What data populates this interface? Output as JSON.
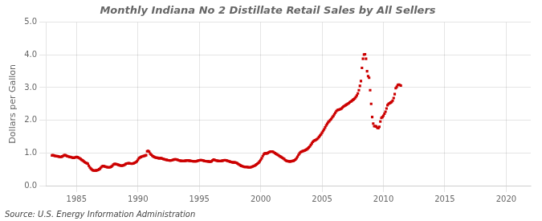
{
  "chart_data": {
    "type": "scatter",
    "title": "Monthly Indiana No 2 Distillate Retail Sales by All Sellers",
    "ylabel": "Dollars per Gallon",
    "annotations": [
      "Source: U.S. Energy Information Administration"
    ],
    "xlim": [
      1982.5,
      2022
    ],
    "ylim": [
      0.0,
      5.0
    ],
    "xticks": [
      1985,
      1990,
      1995,
      2000,
      2005,
      2010,
      2015,
      2020
    ],
    "yticks": [
      {
        "value": 0.0,
        "label": "0.0"
      },
      {
        "value": 1.0,
        "label": "1.0"
      },
      {
        "value": 2.0,
        "label": "2.0"
      },
      {
        "value": 3.0,
        "label": "3.0"
      },
      {
        "value": 4.0,
        "label": "4.0"
      },
      {
        "value": 5.0,
        "label": "5.0"
      }
    ],
    "grid": true,
    "marker": "square",
    "color": "#cc0000",
    "x": [
      1983.0,
      1983.083,
      1983.167,
      1983.25,
      1983.333,
      1983.417,
      1983.5,
      1983.583,
      1983.667,
      1983.75,
      1983.833,
      1983.917,
      1984.0,
      1984.083,
      1984.167,
      1984.25,
      1984.333,
      1984.417,
      1984.5,
      1984.583,
      1984.667,
      1984.75,
      1984.833,
      1984.917,
      1985.0,
      1985.083,
      1985.167,
      1985.25,
      1985.333,
      1985.417,
      1985.5,
      1985.583,
      1985.667,
      1985.75,
      1985.833,
      1985.917,
      1986.0,
      1986.083,
      1986.167,
      1986.25,
      1986.333,
      1986.417,
      1986.5,
      1986.583,
      1986.667,
      1986.75,
      1986.833,
      1986.917,
      1987.0,
      1987.083,
      1987.167,
      1987.25,
      1987.333,
      1987.417,
      1987.5,
      1987.583,
      1987.667,
      1987.75,
      1987.833,
      1987.917,
      1988.0,
      1988.083,
      1988.167,
      1988.25,
      1988.333,
      1988.417,
      1988.5,
      1988.583,
      1988.667,
      1988.75,
      1988.833,
      1988.917,
      1989.0,
      1989.083,
      1989.167,
      1989.25,
      1989.333,
      1989.417,
      1989.5,
      1989.583,
      1989.667,
      1989.75,
      1989.833,
      1989.917,
      1990.0,
      1990.083,
      1990.167,
      1990.25,
      1990.333,
      1990.417,
      1990.5,
      1990.583,
      1990.667,
      1990.75,
      1990.833,
      1990.917,
      1991.0,
      1991.083,
      1991.167,
      1991.25,
      1991.333,
      1991.417,
      1991.5,
      1991.583,
      1991.667,
      1991.75,
      1991.833,
      1991.917,
      1992.0,
      1992.083,
      1992.167,
      1992.25,
      1992.333,
      1992.417,
      1992.5,
      1992.583,
      1992.667,
      1992.75,
      1992.833,
      1992.917,
      1993.0,
      1993.083,
      1993.167,
      1993.25,
      1993.333,
      1993.417,
      1993.5,
      1993.583,
      1993.667,
      1993.75,
      1993.833,
      1993.917,
      1994.0,
      1994.083,
      1994.167,
      1994.25,
      1994.333,
      1994.417,
      1994.5,
      1994.583,
      1994.667,
      1994.75,
      1994.833,
      1994.917,
      1995.0,
      1995.083,
      1995.167,
      1995.25,
      1995.333,
      1995.417,
      1995.5,
      1995.583,
      1995.667,
      1995.75,
      1995.833,
      1995.917,
      1996.0,
      1996.083,
      1996.167,
      1996.25,
      1996.333,
      1996.417,
      1996.5,
      1996.583,
      1996.667,
      1996.75,
      1996.833,
      1996.917,
      1997.0,
      1997.083,
      1997.167,
      1997.25,
      1997.333,
      1997.417,
      1997.5,
      1997.583,
      1997.667,
      1997.75,
      1997.833,
      1997.917,
      1998.0,
      1998.083,
      1998.167,
      1998.25,
      1998.333,
      1998.417,
      1998.5,
      1998.583,
      1998.667,
      1998.75,
      1998.833,
      1998.917,
      1999.0,
      1999.083,
      1999.167,
      1999.25,
      1999.333,
      1999.417,
      1999.5,
      1999.583,
      1999.667,
      1999.75,
      1999.833,
      1999.917,
      2000.0,
      2000.083,
      2000.167,
      2000.25,
      2000.333,
      2000.417,
      2000.5,
      2000.583,
      2000.667,
      2000.75,
      2000.833,
      2000.917,
      2001.0,
      2001.083,
      2001.167,
      2001.25,
      2001.333,
      2001.417,
      2001.5,
      2001.583,
      2001.667,
      2001.75,
      2001.833,
      2001.917,
      2002.0,
      2002.083,
      2002.167,
      2002.25,
      2002.333,
      2002.417,
      2002.5,
      2002.583,
      2002.667,
      2002.75,
      2002.833,
      2002.917,
      2003.0,
      2003.083,
      2003.167,
      2003.25,
      2003.333,
      2003.417,
      2003.5,
      2003.583,
      2003.667,
      2003.75,
      2003.833,
      2003.917,
      2004.0,
      2004.083,
      2004.167,
      2004.25,
      2004.333,
      2004.417,
      2004.5,
      2004.583,
      2004.667,
      2004.75,
      2004.833,
      2004.917,
      2005.0,
      2005.083,
      2005.167,
      2005.25,
      2005.333,
      2005.417,
      2005.5,
      2005.583,
      2005.667,
      2005.75,
      2005.833,
      2005.917,
      2006.0,
      2006.083,
      2006.167,
      2006.25,
      2006.333,
      2006.417,
      2006.5,
      2006.583,
      2006.667,
      2006.75,
      2006.833,
      2006.917,
      2007.0,
      2007.083,
      2007.167,
      2007.25,
      2007.333,
      2007.417,
      2007.5,
      2007.583,
      2007.667,
      2007.75,
      2007.833,
      2007.917,
      2008.0,
      2008.083,
      2008.167,
      2008.25,
      2008.333,
      2008.417,
      2008.5,
      2008.583,
      2008.667,
      2008.75,
      2008.833,
      2008.917,
      2009.0,
      2009.083,
      2009.167,
      2009.25,
      2009.333,
      2009.417,
      2009.5,
      2009.583,
      2009.667,
      2009.75,
      2009.833,
      2009.917,
      2010.0,
      2010.083,
      2010.167,
      2010.25,
      2010.333,
      2010.417,
      2010.5,
      2010.583,
      2010.667,
      2010.75,
      2010.833,
      2010.917,
      2011.0,
      2011.083,
      2011.167,
      2011.25,
      2011.333,
      2011.417
    ],
    "values": [
      0.925,
      0.935,
      0.92,
      0.91,
      0.905,
      0.9,
      0.895,
      0.885,
      0.88,
      0.88,
      0.895,
      0.91,
      0.93,
      0.93,
      0.915,
      0.9,
      0.89,
      0.88,
      0.875,
      0.865,
      0.855,
      0.85,
      0.855,
      0.865,
      0.875,
      0.87,
      0.855,
      0.835,
      0.815,
      0.79,
      0.77,
      0.745,
      0.72,
      0.7,
      0.685,
      0.67,
      0.61,
      0.56,
      0.52,
      0.49,
      0.47,
      0.46,
      0.46,
      0.465,
      0.47,
      0.48,
      0.5,
      0.52,
      0.56,
      0.59,
      0.6,
      0.595,
      0.58,
      0.57,
      0.565,
      0.56,
      0.56,
      0.565,
      0.58,
      0.61,
      0.645,
      0.66,
      0.665,
      0.655,
      0.645,
      0.635,
      0.625,
      0.615,
      0.61,
      0.615,
      0.625,
      0.64,
      0.66,
      0.675,
      0.68,
      0.685,
      0.68,
      0.675,
      0.67,
      0.675,
      0.685,
      0.7,
      0.72,
      0.745,
      0.79,
      0.84,
      0.86,
      0.875,
      0.89,
      0.9,
      0.91,
      0.92,
      0.93,
      1.05,
      1.06,
      1.04,
      0.98,
      0.945,
      0.915,
      0.895,
      0.875,
      0.86,
      0.855,
      0.85,
      0.84,
      0.84,
      0.84,
      0.84,
      0.825,
      0.815,
      0.805,
      0.795,
      0.79,
      0.78,
      0.775,
      0.77,
      0.77,
      0.775,
      0.785,
      0.795,
      0.805,
      0.805,
      0.795,
      0.785,
      0.775,
      0.765,
      0.76,
      0.755,
      0.755,
      0.755,
      0.76,
      0.765,
      0.77,
      0.77,
      0.765,
      0.76,
      0.755,
      0.75,
      0.745,
      0.745,
      0.745,
      0.745,
      0.755,
      0.765,
      0.775,
      0.78,
      0.78,
      0.775,
      0.765,
      0.755,
      0.75,
      0.745,
      0.745,
      0.74,
      0.735,
      0.73,
      0.745,
      0.775,
      0.795,
      0.785,
      0.775,
      0.765,
      0.758,
      0.752,
      0.75,
      0.752,
      0.758,
      0.765,
      0.775,
      0.78,
      0.775,
      0.765,
      0.755,
      0.745,
      0.735,
      0.725,
      0.715,
      0.71,
      0.71,
      0.71,
      0.7,
      0.685,
      0.665,
      0.645,
      0.625,
      0.605,
      0.595,
      0.585,
      0.575,
      0.57,
      0.57,
      0.568,
      0.56,
      0.558,
      0.56,
      0.57,
      0.585,
      0.595,
      0.61,
      0.63,
      0.65,
      0.675,
      0.705,
      0.74,
      0.785,
      0.84,
      0.905,
      0.96,
      0.985,
      0.985,
      0.985,
      1.0,
      1.02,
      1.035,
      1.045,
      1.045,
      1.035,
      1.015,
      0.995,
      0.975,
      0.955,
      0.935,
      0.915,
      0.895,
      0.875,
      0.855,
      0.835,
      0.815,
      0.78,
      0.762,
      0.752,
      0.745,
      0.74,
      0.74,
      0.745,
      0.752,
      0.76,
      0.775,
      0.8,
      0.835,
      0.885,
      0.94,
      0.985,
      1.025,
      1.04,
      1.055,
      1.065,
      1.075,
      1.09,
      1.11,
      1.135,
      1.165,
      1.2,
      1.245,
      1.295,
      1.34,
      1.37,
      1.385,
      1.4,
      1.42,
      1.45,
      1.49,
      1.53,
      1.57,
      1.62,
      1.67,
      1.72,
      1.78,
      1.84,
      1.89,
      1.94,
      1.97,
      2.01,
      2.04,
      2.09,
      2.13,
      2.18,
      2.23,
      2.28,
      2.31,
      2.32,
      2.33,
      2.34,
      2.36,
      2.39,
      2.42,
      2.44,
      2.46,
      2.48,
      2.5,
      2.52,
      2.55,
      2.57,
      2.59,
      2.62,
      2.64,
      2.67,
      2.71,
      2.76,
      2.82,
      2.92,
      3.05,
      3.2,
      3.6,
      3.88,
      4.01,
      4.02,
      3.88,
      3.5,
      3.35,
      3.3,
      2.92,
      2.5,
      2.1,
      1.9,
      1.82,
      1.82,
      1.81,
      1.77,
      1.76,
      1.8,
      1.96,
      2.07,
      2.1,
      2.14,
      2.2,
      2.26,
      2.36,
      2.46,
      2.5,
      2.52,
      2.54,
      2.56,
      2.6,
      2.68,
      2.8,
      2.98,
      3.02,
      3.08,
      3.09,
      3.08,
      3.06
    ]
  }
}
